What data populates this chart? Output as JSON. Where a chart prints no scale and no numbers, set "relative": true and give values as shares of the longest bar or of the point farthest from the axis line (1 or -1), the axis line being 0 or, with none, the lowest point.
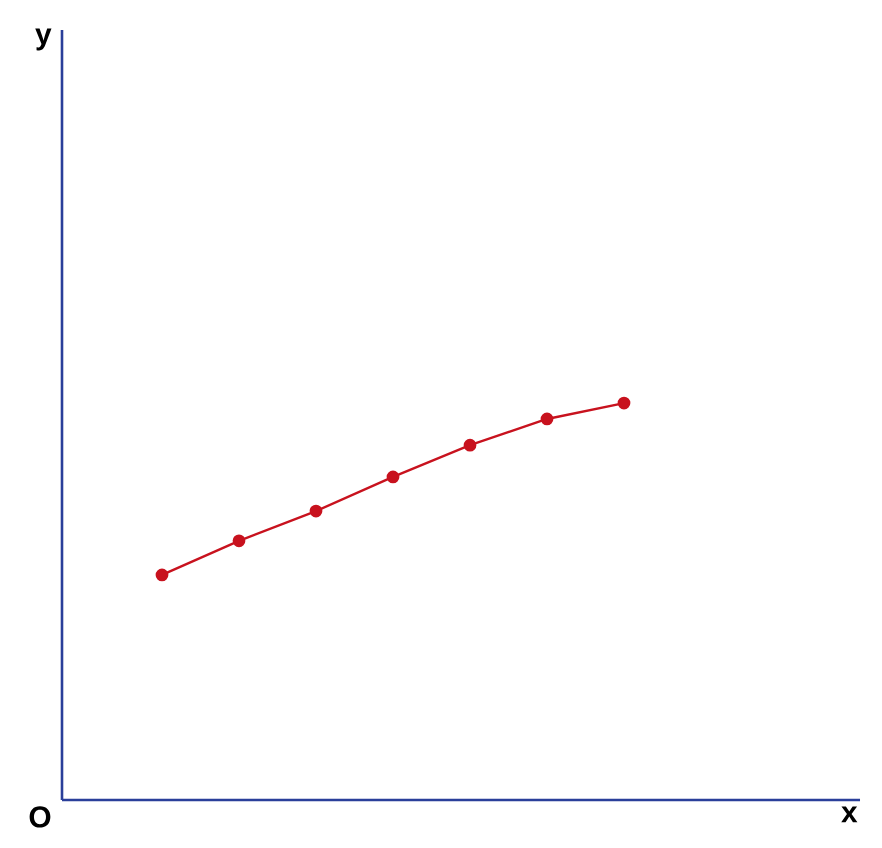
{
  "chart_data": {
    "type": "line",
    "relative": true,
    "annotations": [
      "y",
      "O",
      "x"
    ],
    "marker": "circle",
    "categories": [
      null,
      null,
      null,
      null,
      null,
      null,
      null
    ],
    "series": [
      {
        "color": "#c8121e",
        "values": [
          0.567,
          0.653,
          0.728,
          0.814,
          0.894,
          0.96,
          1
        ]
      }
    ]
  }
}
